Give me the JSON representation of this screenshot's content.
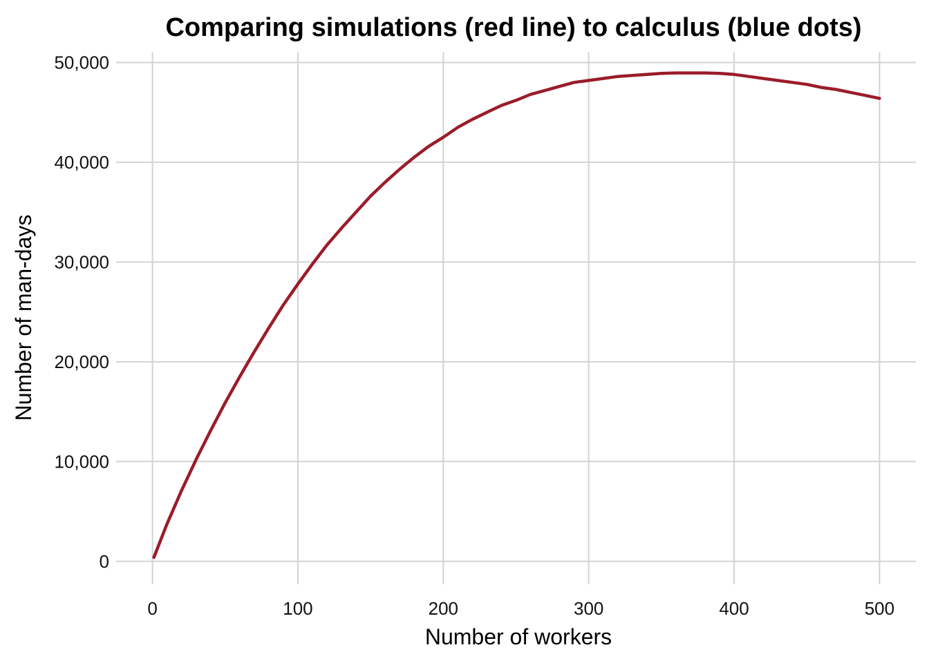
{
  "chart_data": {
    "type": "line",
    "title": "Comparing simulations (red line) to calculus (blue dots)",
    "xlabel": "Number of workers",
    "ylabel": "Number of man-days",
    "xlim": [
      -25,
      525
    ],
    "ylim": [
      -2300,
      51000
    ],
    "x_ticks": [
      0,
      100,
      200,
      300,
      400,
      500
    ],
    "x_tick_labels": [
      "0",
      "100",
      "200",
      "300",
      "400",
      "500"
    ],
    "y_ticks": [
      0,
      10000,
      20000,
      30000,
      40000,
      50000
    ],
    "y_tick_labels": [
      "0",
      "10,000",
      "20,000",
      "30,000",
      "40,000",
      "50,000"
    ],
    "grid": true,
    "legend": "none",
    "colors": {
      "series": "#9b1c2a",
      "grid": "#d3d3d3"
    },
    "series": [
      {
        "color": "#9b1c2a",
        "x": [
          1,
          10,
          20,
          30,
          40,
          50,
          60,
          70,
          80,
          90,
          100,
          110,
          120,
          130,
          140,
          150,
          160,
          170,
          180,
          190,
          200,
          210,
          220,
          230,
          240,
          250,
          260,
          270,
          280,
          290,
          300,
          310,
          320,
          330,
          340,
          350,
          360,
          370,
          380,
          390,
          400,
          410,
          420,
          430,
          440,
          450,
          460,
          470,
          480,
          490,
          500
        ],
        "y": [
          400,
          3750,
          7100,
          10200,
          13100,
          15900,
          18500,
          21000,
          23400,
          25700,
          27800,
          29800,
          31700,
          33400,
          35000,
          36600,
          38000,
          39300,
          40500,
          41600,
          42500,
          43500,
          44300,
          45000,
          45700,
          46200,
          46800,
          47200,
          47600,
          48000,
          48200,
          48400,
          48600,
          48700,
          48800,
          48900,
          48950,
          48950,
          48950,
          48900,
          48800,
          48600,
          48400,
          48200,
          48000,
          47800,
          47500,
          47300,
          47000,
          46700,
          46400
        ]
      }
    ]
  }
}
